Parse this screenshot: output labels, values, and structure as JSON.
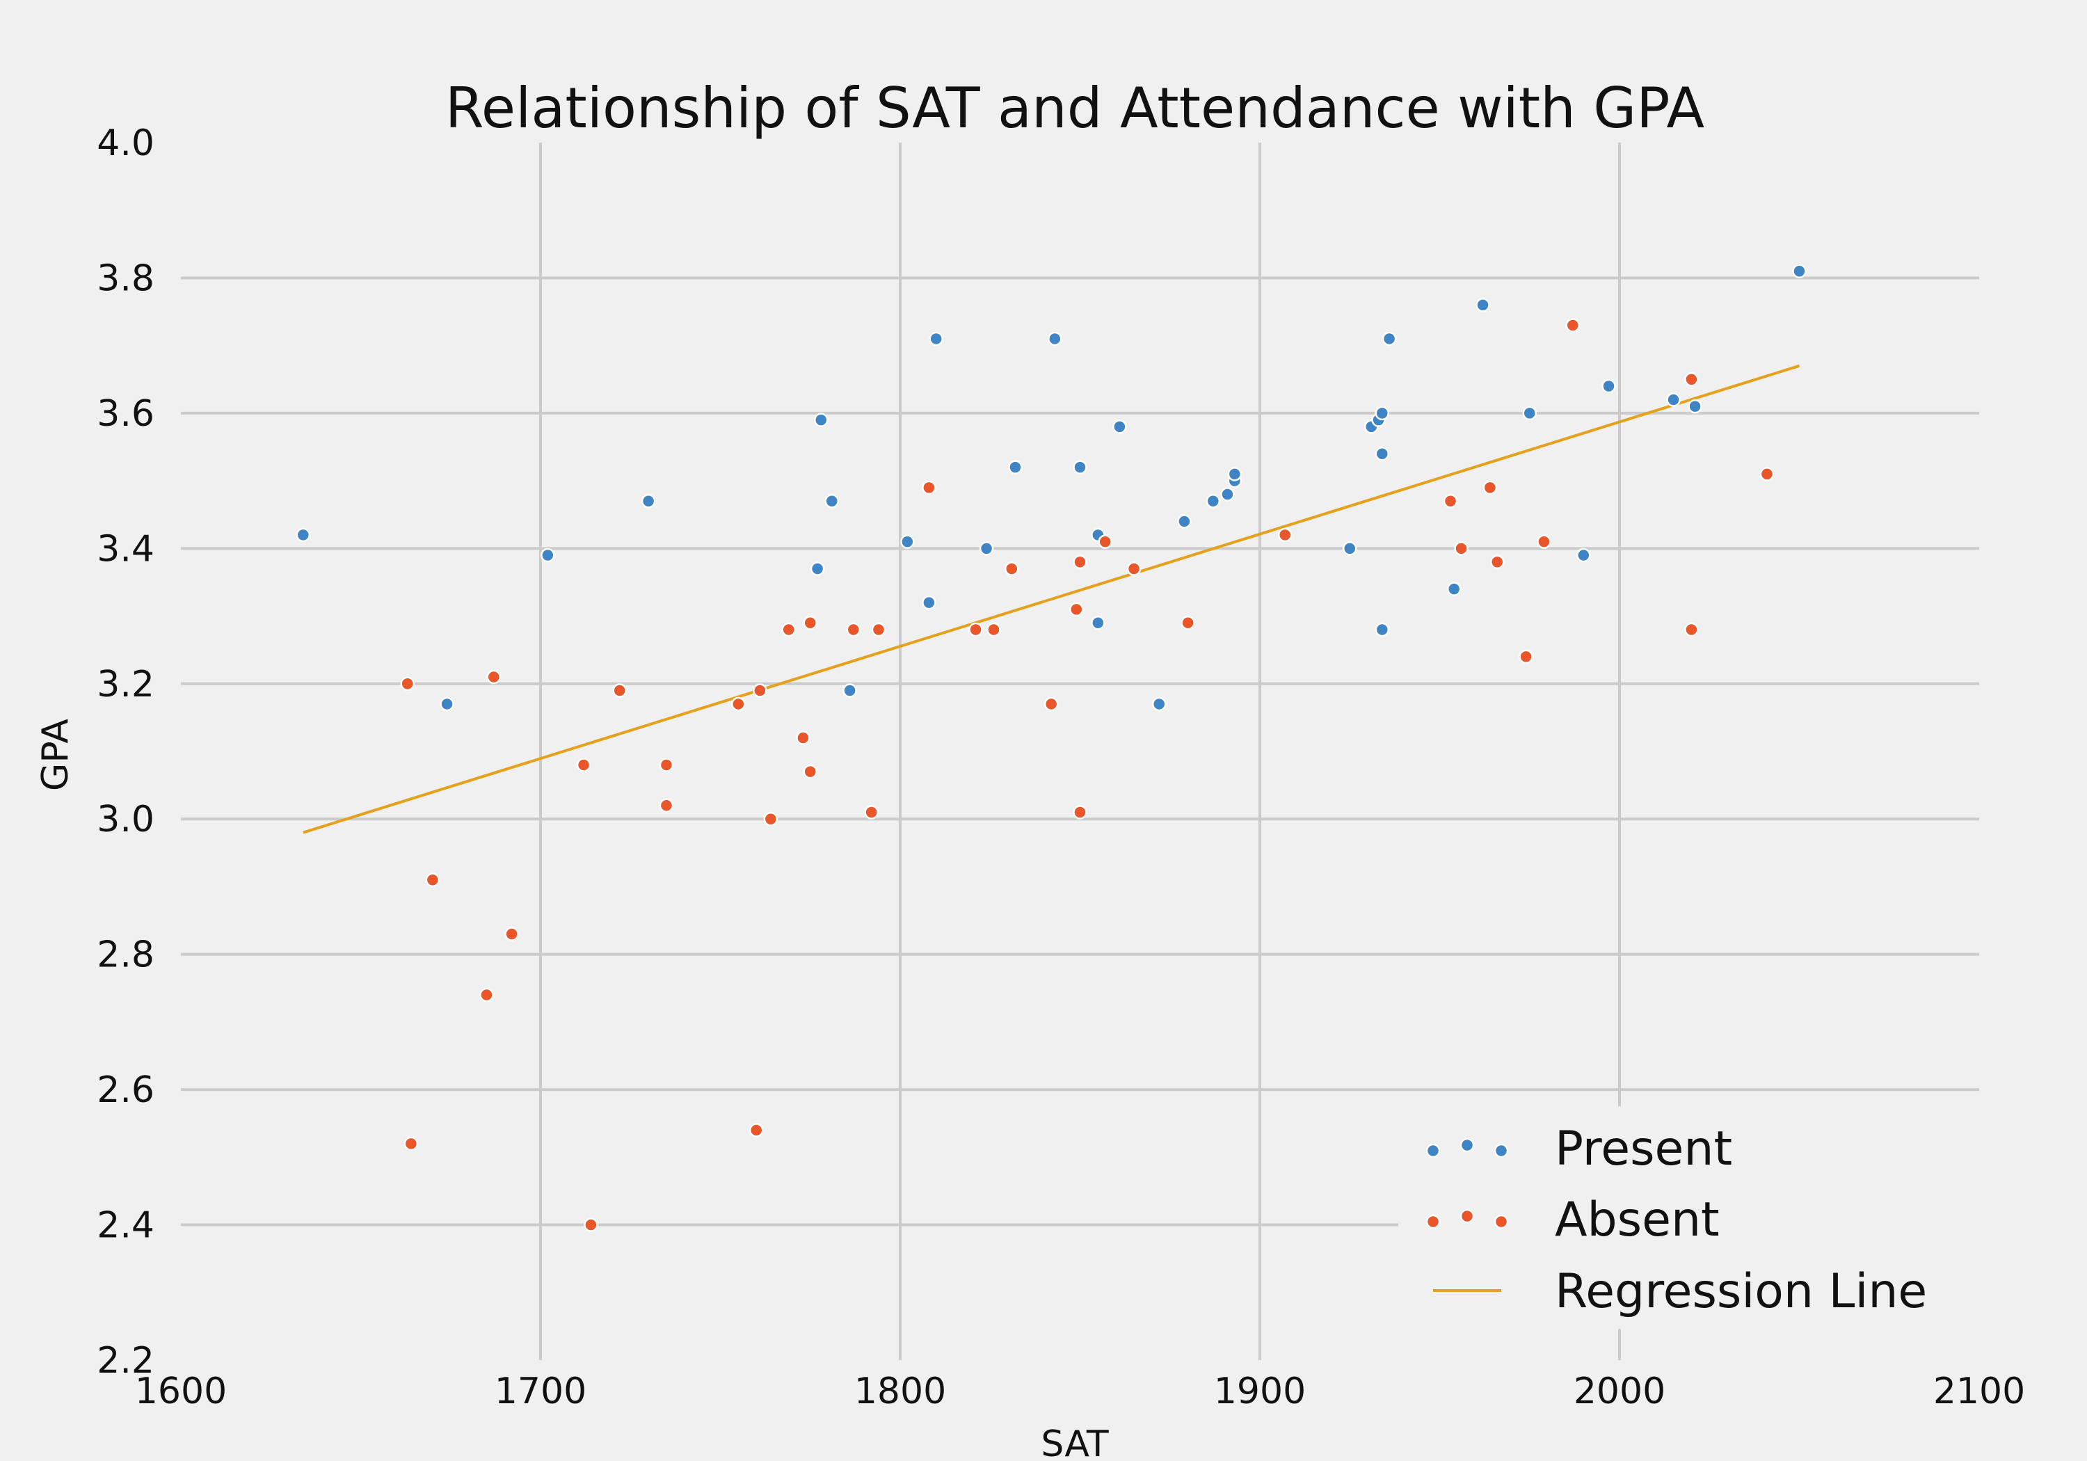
{
  "colors": {
    "present": "#3f85c6",
    "absent": "#e8562a",
    "regression": "#e5a11b",
    "background": "#f0f0f0",
    "grid": "#cbcbcb"
  },
  "chart_data": {
    "type": "scatter",
    "title": "Relationship of SAT and Attendance with GPA",
    "xlabel": "SAT",
    "ylabel": "GPA",
    "xlim": [
      1600,
      2100
    ],
    "ylim": [
      2.2,
      4.0
    ],
    "x_ticks": [
      1600,
      1700,
      1800,
      1900,
      2000,
      2100
    ],
    "y_ticks": [
      "2.2",
      "2.4",
      "2.6",
      "2.8",
      "3.0",
      "3.2",
      "3.4",
      "3.6",
      "3.8",
      "4.0"
    ],
    "grid": true,
    "legend_position": "bottom-right",
    "series": [
      {
        "name": "Present",
        "kind": "points",
        "color": "#3f85c6",
        "points": [
          [
            1634,
            3.42
          ],
          [
            1674,
            3.17
          ],
          [
            1702,
            3.39
          ],
          [
            1730,
            3.47
          ],
          [
            1777,
            3.37
          ],
          [
            1778,
            3.59
          ],
          [
            1781,
            3.47
          ],
          [
            1786,
            3.19
          ],
          [
            1802,
            3.41
          ],
          [
            1808,
            3.32
          ],
          [
            1810,
            3.71
          ],
          [
            1824,
            3.4
          ],
          [
            1832,
            3.52
          ],
          [
            1843,
            3.71
          ],
          [
            1850,
            3.52
          ],
          [
            1855,
            3.42
          ],
          [
            1855,
            3.29
          ],
          [
            1861,
            3.58
          ],
          [
            1872,
            3.17
          ],
          [
            1879,
            3.44
          ],
          [
            1887,
            3.47
          ],
          [
            1891,
            3.48
          ],
          [
            1893,
            3.5
          ],
          [
            1893,
            3.51
          ],
          [
            1925,
            3.4
          ],
          [
            1931,
            3.58
          ],
          [
            1933,
            3.59
          ],
          [
            1934,
            3.6
          ],
          [
            1934,
            3.54
          ],
          [
            1934,
            3.28
          ],
          [
            1936,
            3.71
          ],
          [
            1954,
            3.34
          ],
          [
            1962,
            3.76
          ],
          [
            1975,
            3.6
          ],
          [
            1990,
            3.39
          ],
          [
            1997,
            3.64
          ],
          [
            2015,
            3.62
          ],
          [
            2021,
            3.61
          ],
          [
            2050,
            3.81
          ]
        ]
      },
      {
        "name": "Absent",
        "kind": "points",
        "color": "#e8562a",
        "points": [
          [
            1663,
            3.2
          ],
          [
            1664,
            2.52
          ],
          [
            1670,
            2.91
          ],
          [
            1685,
            2.74
          ],
          [
            1687,
            3.21
          ],
          [
            1692,
            2.83
          ],
          [
            1712,
            3.08
          ],
          [
            1714,
            2.4
          ],
          [
            1722,
            3.19
          ],
          [
            1735,
            3.08
          ],
          [
            1735,
            3.02
          ],
          [
            1755,
            3.17
          ],
          [
            1760,
            2.54
          ],
          [
            1761,
            3.19
          ],
          [
            1764,
            3.0
          ],
          [
            1769,
            3.28
          ],
          [
            1773,
            3.12
          ],
          [
            1775,
            3.29
          ],
          [
            1775,
            3.07
          ],
          [
            1787,
            3.28
          ],
          [
            1792,
            3.01
          ],
          [
            1794,
            3.28
          ],
          [
            1808,
            3.49
          ],
          [
            1821,
            3.28
          ],
          [
            1826,
            3.28
          ],
          [
            1831,
            3.37
          ],
          [
            1842,
            3.17
          ],
          [
            1849,
            3.31
          ],
          [
            1850,
            3.38
          ],
          [
            1850,
            3.01
          ],
          [
            1857,
            3.41
          ],
          [
            1865,
            3.37
          ],
          [
            1880,
            3.29
          ],
          [
            1907,
            3.42
          ],
          [
            1953,
            3.47
          ],
          [
            1956,
            3.4
          ],
          [
            1964,
            3.49
          ],
          [
            1966,
            3.38
          ],
          [
            1974,
            3.24
          ],
          [
            1979,
            3.41
          ],
          [
            1987,
            3.73
          ],
          [
            2020,
            3.65
          ],
          [
            2020,
            3.28
          ],
          [
            2041,
            3.51
          ]
        ]
      },
      {
        "name": "Regression Line",
        "kind": "line",
        "color": "#e5a11b",
        "points": [
          [
            1634,
            2.98
          ],
          [
            2050,
            3.67
          ]
        ]
      }
    ]
  }
}
